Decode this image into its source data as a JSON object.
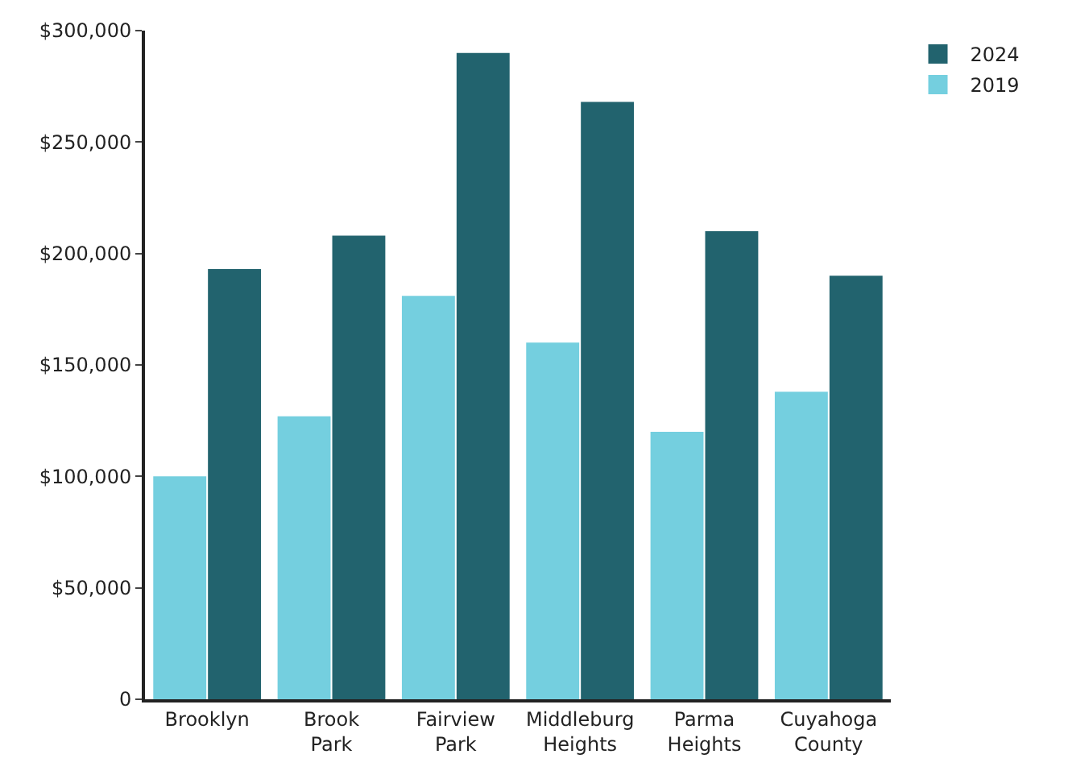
{
  "chart_data": {
    "type": "bar",
    "categories": [
      "Brooklyn",
      "Brook Park",
      "Fairview Park",
      "Middleburg Heights",
      "Parma Heights",
      "Cuyahoga County"
    ],
    "series": [
      {
        "name": "2019",
        "color": "#74cfdf",
        "values": [
          100000,
          127000,
          181000,
          160000,
          120000,
          138000
        ]
      },
      {
        "name": "2024",
        "color": "#22636e",
        "values": [
          193000,
          208000,
          290000,
          268000,
          210000,
          190000
        ]
      }
    ],
    "ylim": [
      0,
      300000
    ],
    "yticks": [
      {
        "value": 0,
        "label": "0"
      },
      {
        "value": 50000,
        "label": "$50,000"
      },
      {
        "value": 100000,
        "label": "$100,000"
      },
      {
        "value": 150000,
        "label": "$150,000"
      },
      {
        "value": 200000,
        "label": "$200,000"
      },
      {
        "value": 250000,
        "label": "$250,000"
      },
      {
        "value": 300000,
        "label": "$300,000"
      }
    ],
    "grid": false,
    "legend": "top right"
  }
}
